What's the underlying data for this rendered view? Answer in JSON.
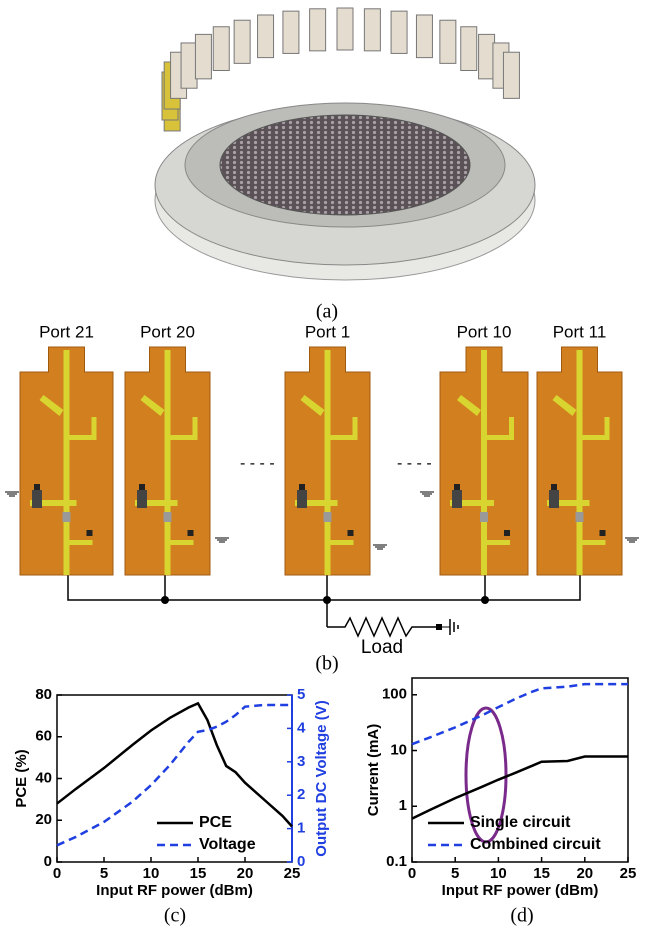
{
  "figure": {
    "panel_labels": [
      "(a)",
      "(b)",
      "(c)",
      "(d)"
    ],
    "ports": [
      "Port 21",
      "Port 20",
      "Port 1",
      "Port 10",
      "Port 11"
    ],
    "load": "Load"
  },
  "chart_data": [
    {
      "type": "line",
      "x_label": "Input RF power (dBm)",
      "y_label": "PCE (%)",
      "y2_label": "Output DC Voltage (V)",
      "x": [
        0,
        2,
        5,
        8,
        10,
        12,
        14,
        15,
        16,
        17,
        18,
        19,
        20,
        22,
        24,
        25
      ],
      "series": [
        {
          "name": "PCE",
          "color": "#000000",
          "style": "solid",
          "values": [
            28,
            35,
            45,
            56,
            63,
            69,
            74,
            76,
            68,
            56,
            46,
            43,
            38,
            30,
            22,
            17
          ]
        },
        {
          "name": "Voltage",
          "color": "#1f3fe0",
          "style": "dashed",
          "axis": "y2",
          "values": [
            0.5,
            0.75,
            1.2,
            1.8,
            2.3,
            2.9,
            3.6,
            3.9,
            3.95,
            4.05,
            4.2,
            4.4,
            4.65,
            4.7,
            4.7,
            4.7
          ]
        }
      ],
      "xlim": [
        0,
        25
      ],
      "xticks": [
        0,
        5,
        10,
        15,
        20,
        25
      ],
      "ylim": [
        0,
        80
      ],
      "yticks": [
        0,
        20,
        40,
        60,
        80
      ],
      "y2lim": [
        0,
        5
      ],
      "y2ticks": [
        0,
        1,
        2,
        3,
        4,
        5
      ],
      "y2_color": "#1f3fe0",
      "legend": "lower right"
    },
    {
      "type": "line",
      "x_label": "Input RF power (dBm)",
      "y_label": "Current (mA)",
      "log_y": true,
      "x": [
        0,
        2,
        5,
        8,
        10,
        12,
        14,
        15,
        18,
        20,
        25
      ],
      "series": [
        {
          "name": "Single circuit",
          "color": "#000000",
          "style": "solid",
          "values": [
            0.6,
            0.85,
            1.4,
            2.2,
            3,
            4,
            5.4,
            6.3,
            6.5,
            7.8,
            7.8
          ]
        },
        {
          "name": "Combined circuit",
          "color": "#1f3fe0",
          "style": "dashed",
          "values": [
            13,
            17,
            26,
            42,
            60,
            85,
            115,
            130,
            140,
            155,
            155
          ]
        }
      ],
      "xlim": [
        0,
        25
      ],
      "xticks": [
        0,
        5,
        10,
        15,
        20,
        25
      ],
      "ylim": [
        0.1,
        200
      ],
      "yticks": [
        0.1,
        1,
        10,
        100
      ],
      "legend": "lower right"
    }
  ]
}
